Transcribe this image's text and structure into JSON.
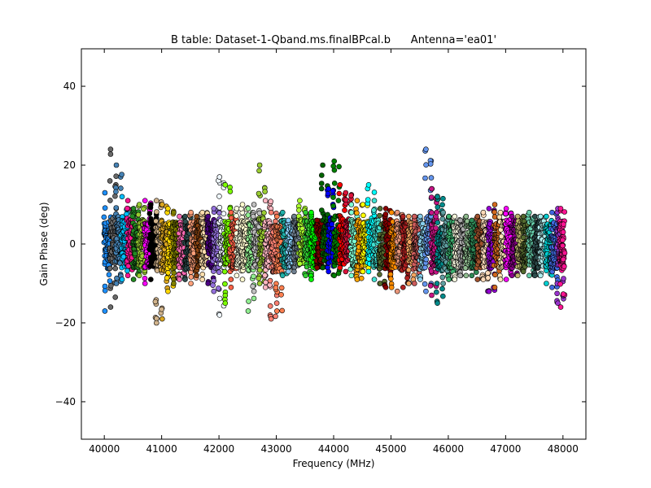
{
  "chart_data": {
    "type": "scatter",
    "title": "B table: Dataset-1-Qband.ms.finalBPcal.b      Antenna='ea01'",
    "xlabel": "Frequency (MHz)",
    "ylabel": "Gain Phase (deg)",
    "xlim": [
      39600,
      48400
    ],
    "ylim": [
      -49.5,
      49.5
    ],
    "xticks": [
      40000,
      41000,
      42000,
      43000,
      44000,
      45000,
      46000,
      47000,
      48000
    ],
    "yticks": [
      40,
      20,
      0,
      -20,
      -40
    ],
    "ytick_labels": [
      "40",
      "20",
      "0",
      "−20",
      "−40"
    ],
    "grid": false,
    "legend": "none",
    "series": [
      {
        "x_start": 40000,
        "x_end": 40100,
        "color": "#1e90ff",
        "y_min": -17,
        "y_max": 13
      },
      {
        "x_start": 40100,
        "x_end": 40200,
        "color": "#696969",
        "y_min": -16,
        "y_max": 24
      },
      {
        "x_start": 40200,
        "x_end": 40300,
        "color": "#4682b4",
        "y_min": -10,
        "y_max": 20
      },
      {
        "x_start": 40300,
        "x_end": 40400,
        "color": "#00bfff",
        "y_min": -9,
        "y_max": 12
      },
      {
        "x_start": 40400,
        "x_end": 40500,
        "color": "#ff1493",
        "y_min": -8,
        "y_max": 11
      },
      {
        "x_start": 40500,
        "x_end": 40600,
        "color": "#228b22",
        "y_min": -9,
        "y_max": 9
      },
      {
        "x_start": 40600,
        "x_end": 40700,
        "color": "#9acd32",
        "y_min": -8,
        "y_max": 10
      },
      {
        "x_start": 40700,
        "x_end": 40800,
        "color": "#ff00ff",
        "y_min": -10,
        "y_max": 11
      },
      {
        "x_start": 40800,
        "x_end": 40900,
        "color": "#000000",
        "y_min": -9,
        "y_max": 10
      },
      {
        "x_start": 40900,
        "x_end": 41000,
        "color": "#d2b48c",
        "y_min": -20,
        "y_max": 11
      },
      {
        "x_start": 41000,
        "x_end": 41100,
        "color": "#daa520",
        "y_min": -19,
        "y_max": 10
      },
      {
        "x_start": 41100,
        "x_end": 41200,
        "color": "#ffd700",
        "y_min": -12,
        "y_max": 9
      },
      {
        "x_start": 41200,
        "x_end": 41300,
        "color": "#808000",
        "y_min": -10,
        "y_max": 8
      },
      {
        "x_start": 41300,
        "x_end": 41400,
        "color": "#ff69b4",
        "y_min": -9,
        "y_max": 7
      },
      {
        "x_start": 41400,
        "x_end": 41500,
        "color": "#2f4f4f",
        "y_min": -9,
        "y_max": 7
      },
      {
        "x_start": 41500,
        "x_end": 41600,
        "color": "#ffa07a",
        "y_min": -10,
        "y_max": 8
      },
      {
        "x_start": 41600,
        "x_end": 41700,
        "color": "#8b4513",
        "y_min": -8,
        "y_max": 7
      },
      {
        "x_start": 41700,
        "x_end": 41800,
        "color": "#ffdead",
        "y_min": -9,
        "y_max": 8
      },
      {
        "x_start": 41800,
        "x_end": 41900,
        "color": "#4b0082",
        "y_min": -10,
        "y_max": 7
      },
      {
        "x_start": 41900,
        "x_end": 42000,
        "color": "#9370db",
        "y_min": -12,
        "y_max": 9
      },
      {
        "x_start": 42000,
        "x_end": 42100,
        "color": "#f0f8ff",
        "y_min": -18,
        "y_max": 17
      },
      {
        "x_start": 42100,
        "x_end": 42200,
        "color": "#7cfc00",
        "y_min": -15,
        "y_max": 15
      },
      {
        "x_start": 42200,
        "x_end": 42300,
        "color": "#ff6347",
        "y_min": -11,
        "y_max": 8
      },
      {
        "x_start": 42300,
        "x_end": 42400,
        "color": "#ffffe0",
        "y_min": -8,
        "y_max": 9
      },
      {
        "x_start": 42400,
        "x_end": 42500,
        "color": "#fffacd",
        "y_min": -9,
        "y_max": 10
      },
      {
        "x_start": 42500,
        "x_end": 42600,
        "color": "#90ee90",
        "y_min": -17,
        "y_max": 9
      },
      {
        "x_start": 42600,
        "x_end": 42700,
        "color": "#c0c0c0",
        "y_min": -12,
        "y_max": 10
      },
      {
        "x_start": 42700,
        "x_end": 42800,
        "color": "#9acd32",
        "y_min": -10,
        "y_max": 20
      },
      {
        "x_start": 42800,
        "x_end": 42900,
        "color": "#ffb6c1",
        "y_min": -11,
        "y_max": 11
      },
      {
        "x_start": 42900,
        "x_end": 43000,
        "color": "#fa8072",
        "y_min": -19,
        "y_max": 8
      },
      {
        "x_start": 43000,
        "x_end": 43100,
        "color": "#ff7f50",
        "y_min": -17,
        "y_max": 7
      },
      {
        "x_start": 43100,
        "x_end": 43200,
        "color": "#20b2aa",
        "y_min": -8,
        "y_max": 8
      },
      {
        "x_start": 43200,
        "x_end": 43300,
        "color": "#87cefa",
        "y_min": -7,
        "y_max": 6
      },
      {
        "x_start": 43300,
        "x_end": 43400,
        "color": "#708090",
        "y_min": -7,
        "y_max": 7
      },
      {
        "x_start": 43400,
        "x_end": 43500,
        "color": "#adff2f",
        "y_min": -5,
        "y_max": 11
      },
      {
        "x_start": 43500,
        "x_end": 43600,
        "color": "#32cd32",
        "y_min": -8,
        "y_max": 8
      },
      {
        "x_start": 43600,
        "x_end": 43700,
        "color": "#00ff00",
        "y_min": -9,
        "y_max": 8
      },
      {
        "x_start": 43700,
        "x_end": 43800,
        "color": "#800000",
        "y_min": -6,
        "y_max": 6
      },
      {
        "x_start": 43800,
        "x_end": 43900,
        "color": "#006400",
        "y_min": -6,
        "y_max": 20
      },
      {
        "x_start": 43900,
        "x_end": 44000,
        "color": "#0000ff",
        "y_min": -7,
        "y_max": 14
      },
      {
        "x_start": 44000,
        "x_end": 44100,
        "color": "#008000",
        "y_min": -8,
        "y_max": 21
      },
      {
        "x_start": 44100,
        "x_end": 44200,
        "color": "#ff0000",
        "y_min": -6,
        "y_max": 15
      },
      {
        "x_start": 44200,
        "x_end": 44300,
        "color": "#dc143c",
        "y_min": -7,
        "y_max": 13
      },
      {
        "x_start": 44300,
        "x_end": 44400,
        "color": "#7fffd4",
        "y_min": -8,
        "y_max": 10
      },
      {
        "x_start": 44400,
        "x_end": 44500,
        "color": "#ffa500",
        "y_min": -9,
        "y_max": 11
      },
      {
        "x_start": 44500,
        "x_end": 44600,
        "color": "#ffff00",
        "y_min": -7,
        "y_max": 10
      },
      {
        "x_start": 44600,
        "x_end": 44700,
        "color": "#00ffff",
        "y_min": -7,
        "y_max": 15
      },
      {
        "x_start": 44700,
        "x_end": 44800,
        "color": "#40e0d0",
        "y_min": -9,
        "y_max": 11
      },
      {
        "x_start": 44800,
        "x_end": 44900,
        "color": "#556b2f",
        "y_min": -10,
        "y_max": 9
      },
      {
        "x_start": 44900,
        "x_end": 45000,
        "color": "#8b0000",
        "y_min": -11,
        "y_max": 9
      },
      {
        "x_start": 45000,
        "x_end": 45100,
        "color": "#ff8c00",
        "y_min": -11,
        "y_max": 8
      },
      {
        "x_start": 45100,
        "x_end": 45200,
        "color": "#e9967a",
        "y_min": -12,
        "y_max": 8
      },
      {
        "x_start": 45200,
        "x_end": 45300,
        "color": "#b22222",
        "y_min": -11,
        "y_max": 7
      },
      {
        "x_start": 45300,
        "x_end": 45400,
        "color": "#f4a460",
        "y_min": -10,
        "y_max": 7
      },
      {
        "x_start": 45400,
        "x_end": 45500,
        "color": "#cd5c5c",
        "y_min": -10,
        "y_max": 7
      },
      {
        "x_start": 45500,
        "x_end": 45600,
        "color": "#87ceeb",
        "y_min": -9,
        "y_max": 7
      },
      {
        "x_start": 45600,
        "x_end": 45700,
        "color": "#6495ed",
        "y_min": -12,
        "y_max": 24
      },
      {
        "x_start": 45700,
        "x_end": 45800,
        "color": "#c71585",
        "y_min": -13,
        "y_max": 14
      },
      {
        "x_start": 45800,
        "x_end": 45900,
        "color": "#008b8b",
        "y_min": -15,
        "y_max": 12
      },
      {
        "x_start": 45900,
        "x_end": 46000,
        "color": "#5f9ea0",
        "y_min": -10,
        "y_max": 8
      },
      {
        "x_start": 46000,
        "x_end": 46100,
        "color": "#3cb371",
        "y_min": -9,
        "y_max": 7
      },
      {
        "x_start": 46100,
        "x_end": 46200,
        "color": "#f5f5dc",
        "y_min": -9,
        "y_max": 7
      },
      {
        "x_start": 46200,
        "x_end": 46300,
        "color": "#a9a9a9",
        "y_min": -8,
        "y_max": 6
      },
      {
        "x_start": 46300,
        "x_end": 46400,
        "color": "#8fbc8f",
        "y_min": -8,
        "y_max": 7
      },
      {
        "x_start": 46400,
        "x_end": 46500,
        "color": "#2e8b57",
        "y_min": -8,
        "y_max": 6
      },
      {
        "x_start": 46500,
        "x_end": 46600,
        "color": "#a0522d",
        "y_min": -9,
        "y_max": 7
      },
      {
        "x_start": 46600,
        "x_end": 46700,
        "color": "#ffdab9",
        "y_min": -9,
        "y_max": 8
      },
      {
        "x_start": 46700,
        "x_end": 46800,
        "color": "#9400d3",
        "y_min": -12,
        "y_max": 9
      },
      {
        "x_start": 46800,
        "x_end": 46900,
        "color": "#d2691e",
        "y_min": -11,
        "y_max": 10
      },
      {
        "x_start": 46900,
        "x_end": 47000,
        "color": "#ffe4b5",
        "y_min": -9,
        "y_max": 8
      },
      {
        "x_start": 47000,
        "x_end": 47100,
        "color": "#ff00ff",
        "y_min": -9,
        "y_max": 9
      },
      {
        "x_start": 47100,
        "x_end": 47200,
        "color": "#8b008b",
        "y_min": -8,
        "y_max": 7
      },
      {
        "x_start": 47200,
        "x_end": 47300,
        "color": "#bdb76b",
        "y_min": -8,
        "y_max": 7
      },
      {
        "x_start": 47300,
        "x_end": 47400,
        "color": "#556b2f",
        "y_min": -7,
        "y_max": 7
      },
      {
        "x_start": 47400,
        "x_end": 47500,
        "color": "#66cdaa",
        "y_min": -8,
        "y_max": 8
      },
      {
        "x_start": 47500,
        "x_end": 47600,
        "color": "#2f4f4f",
        "y_min": -8,
        "y_max": 7
      },
      {
        "x_start": 47600,
        "x_end": 47700,
        "color": "#afeeee",
        "y_min": -8,
        "y_max": 7
      },
      {
        "x_start": 47700,
        "x_end": 47800,
        "color": "#00ced1",
        "y_min": -10,
        "y_max": 7
      },
      {
        "x_start": 47800,
        "x_end": 47900,
        "color": "#4169e1",
        "y_min": -11,
        "y_max": 8
      },
      {
        "x_start": 47900,
        "x_end": 48000,
        "color": "#9932cc",
        "y_min": -15,
        "y_max": 9
      },
      {
        "x_start": 47950,
        "x_end": 48020,
        "color": "#ff1493",
        "y_min": -16,
        "y_max": 9
      }
    ]
  }
}
